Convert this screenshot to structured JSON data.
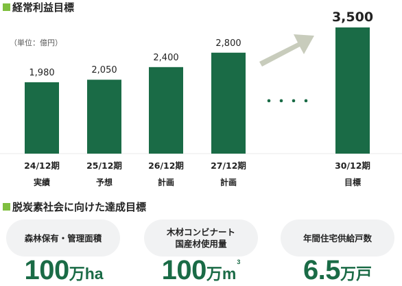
{
  "section1": {
    "title": "経常利益目標",
    "unit_note": "（単位：億円）"
  },
  "chart_data": {
    "type": "bar",
    "categories": [
      "24/12期",
      "25/12期",
      "26/12期",
      "27/12期",
      "30/12期"
    ],
    "category_sublabels": [
      "実績",
      "予想",
      "計画",
      "計画",
      "目標"
    ],
    "values": [
      1980,
      2050,
      2400,
      2800,
      3500
    ],
    "value_labels": [
      "1,980",
      "2,050",
      "2,400",
      "2,800",
      "3,500"
    ],
    "ylim": [
      0,
      3500
    ],
    "bar_color": "#1a6b46",
    "arrow_color": "#c8ccbc",
    "ellipsis": "・・・・",
    "title": "",
    "xlabel": "",
    "ylabel": ""
  },
  "section2": {
    "title": "脱炭素社会に向けた達成目標",
    "targets": [
      {
        "label_lines": [
          "森林保有・管理面積"
        ],
        "number": "100",
        "unit": "万ha",
        "sup": ""
      },
      {
        "label_lines": [
          "木材コンビナート",
          "国産材使用量"
        ],
        "number": "100",
        "unit": "万m",
        "sup": "3"
      },
      {
        "label_lines": [
          "年間住宅供給戸数"
        ],
        "number": "6.5",
        "unit": "万戸",
        "sup": ""
      }
    ]
  },
  "colors": {
    "accent_green": "#1a6b46",
    "square_green": "#7fbf3f",
    "panel_bg": "#f1f2f3"
  }
}
